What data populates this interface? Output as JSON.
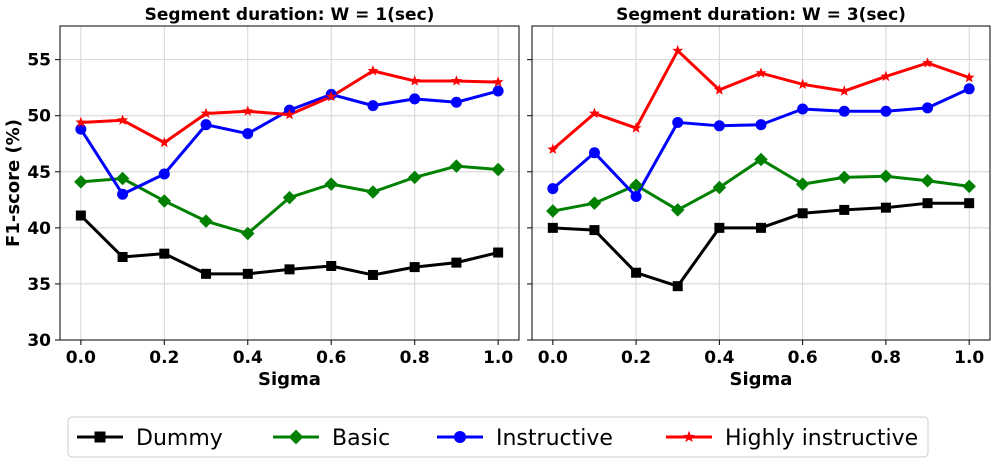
{
  "chart_data": [
    {
      "type": "line",
      "title": "Segment duration: W = 1(sec)",
      "xlabel": "Sigma",
      "ylabel": "F1-score (%)",
      "xlim": [
        -0.05,
        1.05
      ],
      "ylim": [
        30,
        58
      ],
      "xticks": [
        0.0,
        0.2,
        0.4,
        0.6,
        0.8,
        1.0
      ],
      "xtick_labels": [
        "0.0",
        "0.2",
        "0.4",
        "0.6",
        "0.8",
        "1.0"
      ],
      "yticks": [
        30,
        35,
        40,
        45,
        50,
        55
      ],
      "ytick_labels": [
        "30",
        "35",
        "40",
        "45",
        "50",
        "55"
      ],
      "grid": true,
      "x": [
        0.0,
        0.1,
        0.2,
        0.3,
        0.4,
        0.5,
        0.6,
        0.7,
        0.8,
        0.9,
        1.0
      ],
      "series": [
        {
          "name": "Dummy",
          "color": "#000000",
          "marker": "square",
          "values": [
            41.1,
            37.4,
            37.7,
            35.9,
            35.9,
            36.3,
            36.6,
            35.8,
            36.5,
            36.9,
            37.8
          ]
        },
        {
          "name": "Basic",
          "color": "#008000",
          "marker": "diamond",
          "values": [
            44.1,
            44.4,
            42.4,
            40.6,
            39.5,
            42.7,
            43.9,
            43.2,
            44.5,
            45.5,
            45.2
          ]
        },
        {
          "name": "Instructive",
          "color": "#0000ff",
          "marker": "circle",
          "values": [
            48.8,
            43.0,
            44.8,
            49.2,
            48.4,
            50.5,
            51.9,
            50.9,
            51.5,
            51.2,
            52.2
          ]
        },
        {
          "name": "Highly instructive",
          "color": "#ff0000",
          "marker": "star",
          "values": [
            49.4,
            49.6,
            47.6,
            50.2,
            50.4,
            50.1,
            51.7,
            54.0,
            53.1,
            53.1,
            53.0
          ]
        }
      ]
    },
    {
      "type": "line",
      "title": "Segment duration: W = 3(sec)",
      "xlabel": "Sigma",
      "ylabel": "",
      "xlim": [
        -0.05,
        1.05
      ],
      "ylim": [
        30,
        58
      ],
      "xticks": [
        0.0,
        0.2,
        0.4,
        0.6,
        0.8,
        1.0
      ],
      "xtick_labels": [
        "0.0",
        "0.2",
        "0.4",
        "0.6",
        "0.8",
        "1.0"
      ],
      "yticks": [
        30,
        35,
        40,
        45,
        50,
        55
      ],
      "ytick_labels": [],
      "grid": true,
      "x": [
        0.0,
        0.1,
        0.2,
        0.3,
        0.4,
        0.5,
        0.6,
        0.7,
        0.8,
        0.9,
        1.0
      ],
      "series": [
        {
          "name": "Dummy",
          "color": "#000000",
          "marker": "square",
          "values": [
            40.0,
            39.8,
            36.0,
            34.8,
            40.0,
            40.0,
            41.3,
            41.6,
            41.8,
            42.2,
            42.2
          ]
        },
        {
          "name": "Basic",
          "color": "#008000",
          "marker": "diamond",
          "values": [
            41.5,
            42.2,
            43.8,
            41.6,
            43.6,
            46.1,
            43.9,
            44.5,
            44.6,
            44.2,
            43.7
          ]
        },
        {
          "name": "Instructive",
          "color": "#0000ff",
          "marker": "circle",
          "values": [
            43.5,
            46.7,
            42.8,
            49.4,
            49.1,
            49.2,
            50.6,
            50.4,
            50.4,
            50.7,
            52.4
          ]
        },
        {
          "name": "Highly instructive",
          "color": "#ff0000",
          "marker": "star",
          "values": [
            47.0,
            50.2,
            48.9,
            55.8,
            52.3,
            53.8,
            52.8,
            52.2,
            53.5,
            54.7,
            53.4
          ]
        }
      ]
    }
  ],
  "legend": {
    "position": "bottom-center",
    "items": [
      "Dummy",
      "Basic",
      "Instructive",
      "Highly instructive"
    ]
  }
}
